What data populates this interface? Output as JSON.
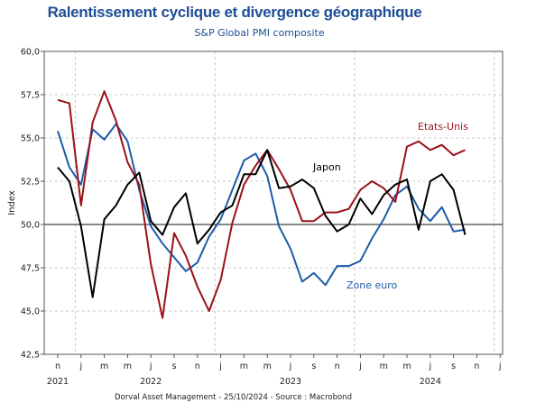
{
  "title": "Ralentissement cyclique et divergence géographique",
  "subtitle": "S&P Global PMI composite",
  "source": "Dorval Asset Management      - 25/10/2024     - Source : Macrobond",
  "chart_data": {
    "type": "line",
    "ylabel": "Index",
    "ylim": [
      42.5,
      60.0
    ],
    "yticks": [
      "42,5",
      "45,0",
      "47,5",
      "50,0",
      "52,5",
      "55,0",
      "57,5",
      "60,0"
    ],
    "reference_line": 50.0,
    "month_labels": [
      "n",
      "j",
      "m",
      "m",
      "j",
      "s",
      "n",
      "j",
      "m",
      "m",
      "j",
      "s",
      "n",
      "j",
      "m",
      "m",
      "j",
      "s",
      "n",
      "j"
    ],
    "year_labels": [
      {
        "label": "2021",
        "at": "2021-11"
      },
      {
        "label": "2022",
        "at": "2022-07"
      },
      {
        "label": "2023",
        "at": "2023-07"
      },
      {
        "label": "2024",
        "at": "2024-07"
      }
    ],
    "x": [
      "2021-11",
      "2021-12",
      "2022-01",
      "2022-02",
      "2022-03",
      "2022-04",
      "2022-05",
      "2022-06",
      "2022-07",
      "2022-08",
      "2022-09",
      "2022-10",
      "2022-11",
      "2022-12",
      "2023-01",
      "2023-02",
      "2023-03",
      "2023-04",
      "2023-05",
      "2023-06",
      "2023-07",
      "2023-08",
      "2023-09",
      "2023-10",
      "2023-11",
      "2023-12",
      "2024-01",
      "2024-02",
      "2024-03",
      "2024-04",
      "2024-05",
      "2024-06",
      "2024-07",
      "2024-08",
      "2024-09",
      "2024-10"
    ],
    "series": [
      {
        "name": "Etats-Unis",
        "color": "#9b1018",
        "values": [
          57.2,
          57.0,
          51.1,
          55.9,
          57.7,
          56.0,
          53.6,
          52.3,
          47.7,
          44.6,
          49.5,
          48.2,
          46.4,
          45.0,
          46.8,
          50.1,
          52.3,
          53.4,
          54.3,
          53.2,
          52.0,
          50.2,
          50.2,
          50.7,
          50.7,
          50.9,
          52.0,
          52.5,
          52.1,
          51.3,
          54.5,
          54.8,
          54.3,
          54.6,
          54.0,
          54.3
        ]
      },
      {
        "name": "Zone euro",
        "color": "#1f5ba8",
        "values": [
          55.4,
          53.3,
          52.3,
          55.5,
          54.9,
          55.8,
          54.8,
          52.0,
          49.9,
          48.9,
          48.1,
          47.3,
          47.8,
          49.3,
          50.3,
          52.0,
          53.7,
          54.1,
          52.8,
          49.9,
          48.6,
          46.7,
          47.2,
          46.5,
          47.6,
          47.6,
          47.9,
          49.2,
          50.3,
          51.7,
          52.2,
          50.9,
          50.2,
          51.0,
          49.6,
          49.7
        ]
      },
      {
        "name": "Japon",
        "color": "#000000",
        "values": [
          53.3,
          52.5,
          49.9,
          45.8,
          50.3,
          51.1,
          52.3,
          53.0,
          50.2,
          49.4,
          51.0,
          51.8,
          48.9,
          49.7,
          50.7,
          51.1,
          52.9,
          52.9,
          54.3,
          52.1,
          52.2,
          52.6,
          52.1,
          50.5,
          49.6,
          50.0,
          51.5,
          50.6,
          51.7,
          52.3,
          52.6,
          49.7,
          52.5,
          52.9,
          52.0,
          49.4
        ]
      }
    ]
  },
  "annotations": [
    {
      "text": "Etats-Unis",
      "series": "Etats-Unis"
    },
    {
      "text": "Japon",
      "series": "Japon"
    },
    {
      "text": "Zone euro",
      "series": "Zone euro"
    }
  ]
}
